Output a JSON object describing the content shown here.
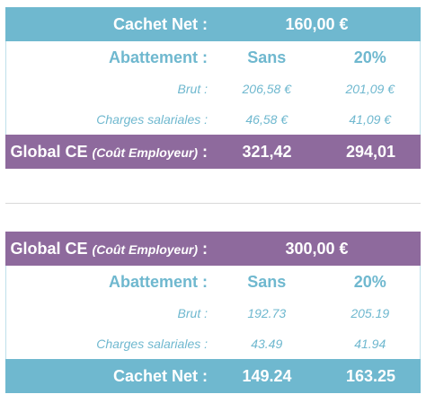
{
  "table1": {
    "header_label": "Cachet Net :",
    "header_value": "160,00 €",
    "abattement_label": "Abattement :",
    "col_sans": "Sans",
    "col_20": "20%",
    "brut_label": "Brut :",
    "brut_sans": "206,58 €",
    "brut_20": "201,09 €",
    "charges_label": "Charges salariales :",
    "charges_sans": "46,58 €",
    "charges_20": "41,09 €",
    "global_label_main": "Global CE ",
    "global_label_paren": "(Coût Employeur)",
    "global_label_colon": " :",
    "global_sans": "321,42",
    "global_20": "294,01"
  },
  "table2": {
    "header_label_main": "Global CE ",
    "header_label_paren": "(Coût Employeur)",
    "header_label_colon": " :",
    "header_value": "300,00 €",
    "abattement_label": "Abattement :",
    "col_sans": "Sans",
    "col_20": "20%",
    "brut_label": "Brut :",
    "brut_sans": "192.73",
    "brut_20": "205.19",
    "charges_label": "Charges salariales :",
    "charges_sans": "43.49",
    "charges_20": "41.94",
    "net_label": "Cachet Net :",
    "net_sans": "149.24",
    "net_20": "163.25"
  },
  "colors": {
    "blue": "#6fb8cf",
    "purple": "#8e6a9d"
  }
}
